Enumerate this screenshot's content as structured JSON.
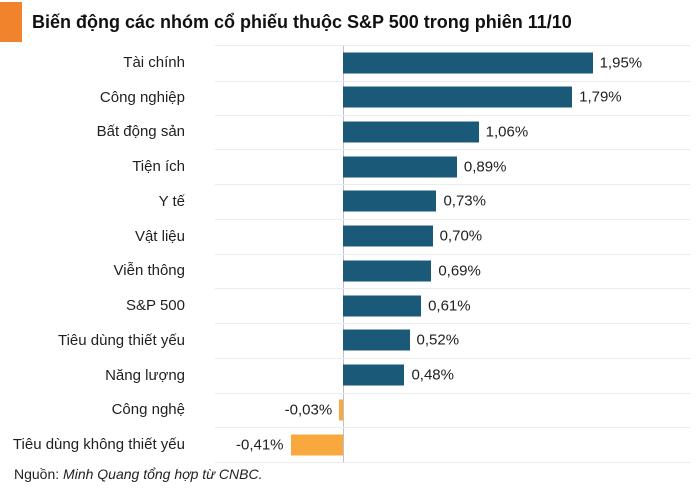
{
  "title": "Biến động các nhóm cổ phiếu thuộc S&P 500 trong phiên 11/10",
  "footer": {
    "prefix": "Nguồn: ",
    "source": "Minh Quang tổng hợp từ CNBC."
  },
  "colors": {
    "positive_bar": "#1A5A78",
    "negative_bar": "#F9A83E",
    "title_accent": "#F0832B",
    "gridline": "#EBEBEB",
    "axis_line": "#B9C1C9"
  },
  "chart_data": {
    "type": "bar",
    "orientation": "horizontal",
    "title": "Biến động các nhóm cổ phiếu thuộc S&P 500 trong phiên 11/10",
    "xlabel": "",
    "ylabel": "",
    "categories": [
      "Tài chính",
      "Công nghiệp",
      "Bất động sản",
      "Tiện ích",
      "Y tế",
      "Vật liệu",
      "Viễn thông",
      "S&P 500",
      "Tiêu dùng thiết yếu",
      "Năng lượng",
      "Công nghệ",
      "Tiêu dùng không thiết yếu"
    ],
    "values": [
      1.95,
      1.79,
      1.06,
      0.89,
      0.73,
      0.7,
      0.69,
      0.61,
      0.52,
      0.48,
      -0.03,
      -0.41
    ],
    "value_labels": [
      "1,95%",
      "1,79%",
      "1,06%",
      "0,89%",
      "0,73%",
      "0,70%",
      "0,69%",
      "0,61%",
      "0,52%",
      "0,48%",
      "-0,03%",
      "-0,41%"
    ],
    "xlim": [
      -1.0,
      2.7
    ],
    "grid": "row-separators",
    "legend": "none",
    "value_label_position": "outside-end"
  }
}
